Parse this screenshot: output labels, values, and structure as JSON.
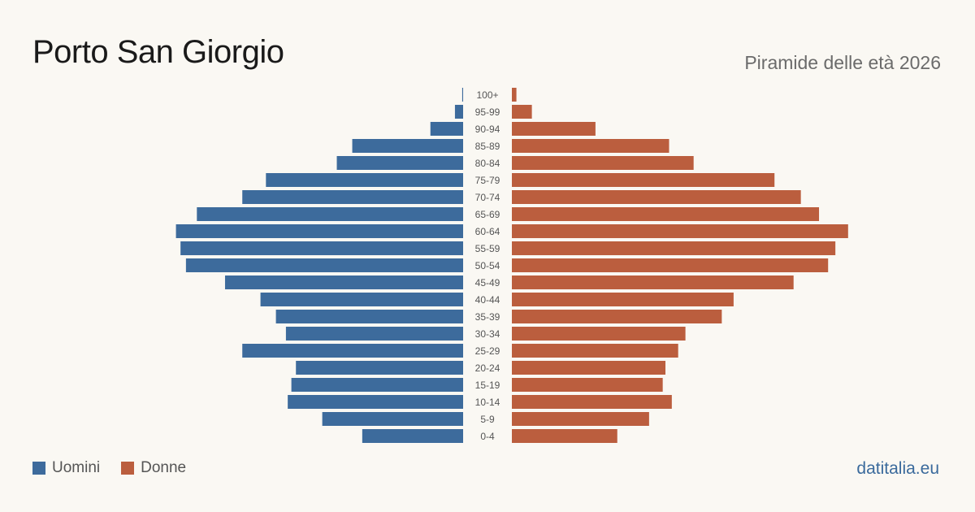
{
  "header": {
    "title": "Porto San Giorgio",
    "subtitle": "Piramide delle età 2026"
  },
  "legend": {
    "men_label": "Uomini",
    "women_label": "Donne"
  },
  "source": "datitalia.eu",
  "colors": {
    "men": "#3d6b9c",
    "women": "#bb5e3e",
    "background": "#faf8f3"
  },
  "chart_data": {
    "type": "bar",
    "orientation": "horizontal-pyramid",
    "categories": [
      "100+",
      "95-99",
      "90-94",
      "85-89",
      "80-84",
      "75-79",
      "70-74",
      "65-69",
      "60-64",
      "55-59",
      "50-54",
      "45-49",
      "40-44",
      "35-39",
      "30-34",
      "25-29",
      "20-24",
      "15-19",
      "10-14",
      "5-9",
      "0-4"
    ],
    "series": [
      {
        "name": "Uomini",
        "values": [
          1,
          9,
          36,
          122,
          139,
          217,
          243,
          293,
          316,
          311,
          305,
          262,
          223,
          206,
          195,
          243,
          184,
          189,
          193,
          155,
          111
        ]
      },
      {
        "name": "Donne",
        "values": [
          5,
          22,
          92,
          173,
          200,
          289,
          318,
          338,
          370,
          356,
          348,
          310,
          244,
          231,
          191,
          183,
          169,
          166,
          176,
          151,
          116
        ]
      }
    ],
    "xlim": [
      0,
      380
    ],
    "grid": false,
    "legend_position": "bottom-left"
  }
}
